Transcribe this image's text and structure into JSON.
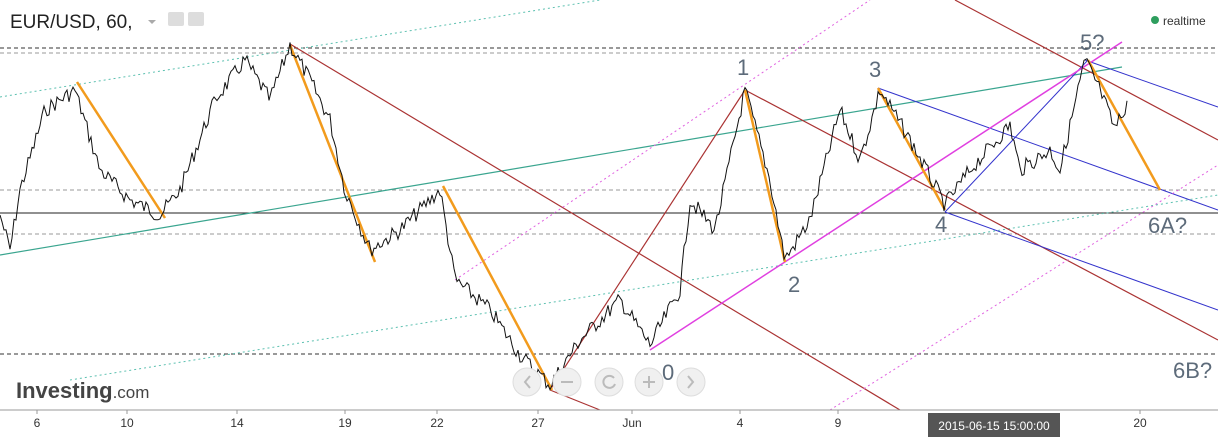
{
  "header": {
    "symbol": "EUR/USD, 60,",
    "status": "realtime"
  },
  "wave_labels": [
    "0",
    "1",
    "2",
    "3",
    "4",
    "5?",
    "6A?",
    "6B?"
  ],
  "x_axis": {
    "labels": [
      "6",
      "10",
      "14",
      "19",
      "22",
      "27",
      "Jun",
      "4",
      "9",
      "20"
    ]
  },
  "crosshair_label": "2015-06-15 15:00:00",
  "logo": {
    "brand": "Investing",
    "suffix": ".com"
  }
}
